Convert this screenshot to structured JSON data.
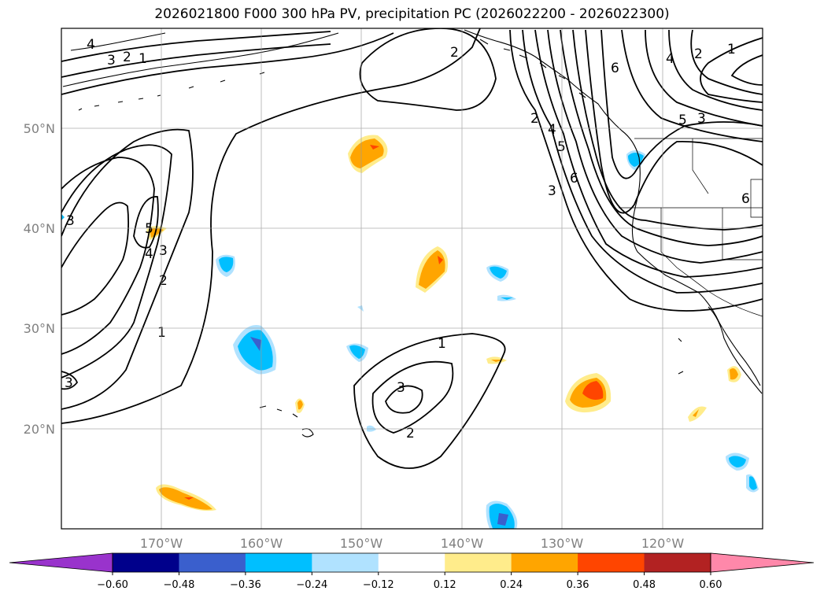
{
  "title": "2026021800 F000 300 hPa PV, precipitation PC (2026022200 - 2026022300)",
  "lat_labels": [
    "50°N",
    "40°N",
    "30°N",
    "20°N"
  ],
  "lon_labels": [
    "170°W",
    "160°W",
    "150°W",
    "140°W",
    "130°W",
    "120°W"
  ],
  "colorbar": {
    "ticks": [
      "−0.60",
      "−0.48",
      "−0.36",
      "−0.24",
      "−0.12",
      "0.12",
      "0.24",
      "0.36",
      "0.48",
      "0.60"
    ],
    "colors": [
      "#9933cc",
      "#00008b",
      "#3a5fcd",
      "#00bfff",
      "#b0e2ff",
      "#ffffff",
      "#ffec8b",
      "#ffa500",
      "#ff4500",
      "#b22222",
      "#ff88aa"
    ]
  },
  "contour_labels": [
    "4",
    "3",
    "2",
    "1",
    "2",
    "5",
    "4",
    "3",
    "2",
    "1",
    "3",
    "3",
    "1",
    "3",
    "2",
    "6",
    "2",
    "4",
    "5",
    "6",
    "3",
    "4",
    "2",
    "1",
    "5",
    "3",
    "6"
  ],
  "map_data": {
    "extent": {
      "lon": [
        -180,
        -110
      ],
      "lat": [
        10,
        60
      ]
    },
    "gridlines": true
  }
}
